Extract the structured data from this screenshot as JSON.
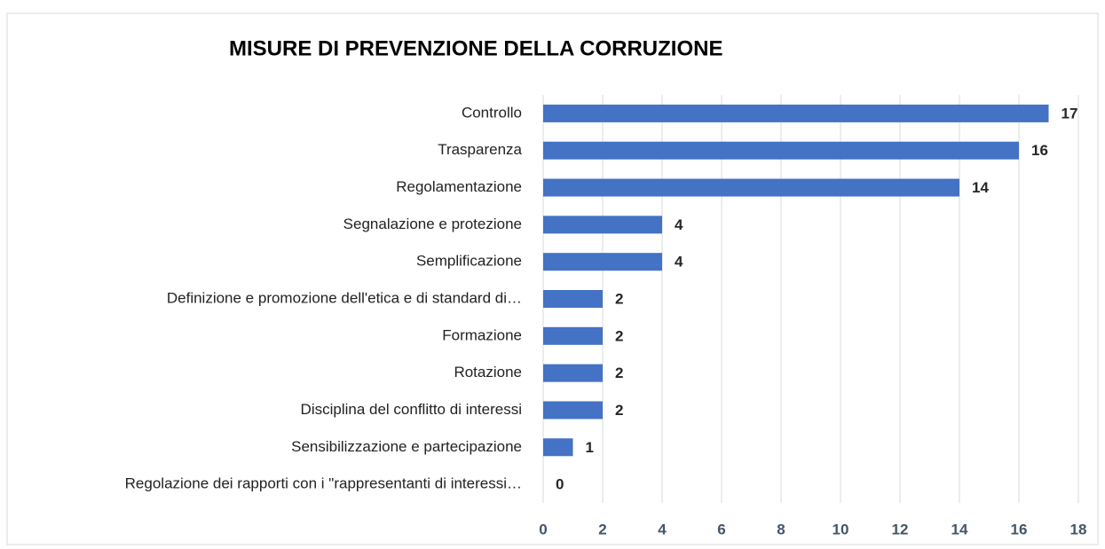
{
  "chart_data": {
    "type": "bar",
    "orientation": "horizontal",
    "title": "MISURE DI PREVENZIONE DELLA CORRUZIONE",
    "categories": [
      "Controllo",
      "Trasparenza",
      "Regolamentazione",
      "Segnalazione e protezione",
      "Semplificazione",
      "Definizione e promozione dell'etica e di standard di…",
      "Formazione",
      "Rotazione",
      "Disciplina del conflitto di interessi",
      "Sensibilizzazione e partecipazione",
      "Regolazione dei rapporti con i \"rappresentanti di interessi…"
    ],
    "values": [
      17,
      16,
      14,
      4,
      4,
      2,
      2,
      2,
      2,
      1,
      0
    ],
    "color": "#4472c4",
    "xlim": [
      0,
      18
    ],
    "xticks": [
      0,
      2,
      4,
      6,
      8,
      10,
      12,
      14,
      16,
      18
    ],
    "grid": true
  }
}
